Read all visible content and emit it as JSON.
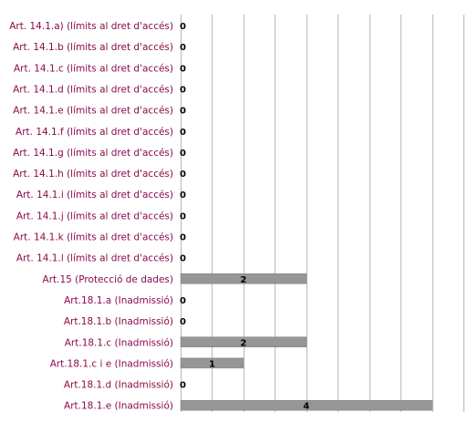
{
  "chart_data": {
    "type": "bar",
    "orientation": "horizontal",
    "categories": [
      "Art. 14.1.a) (límits al dret d'accés)",
      "Art. 14.1.b (límits al dret d'accés)",
      "Art. 14.1.c (límits al dret d'accés)",
      "Art. 14.1.d (límits al dret d'accés)",
      "Art. 14.1.e (límits al dret d'accés)",
      "Art. 14.1.f (límits al dret d'accés)",
      "Art. 14.1.g (límits al dret d'accés)",
      "Art. 14.1.h (límits al dret d'accés)",
      "Art. 14.1.i (límits al dret d'accés)",
      "Art. 14.1.j (límits al dret d'accés)",
      "Art. 14.1.k (límits al dret d'accés)",
      "Art. 14.1.l (límits al dret d'accés)",
      "Art.15 (Protecció de dades)",
      "Art.18.1.a (Inadmissió)",
      "Art.18.1.b (Inadmissió)",
      "Art.18.1.c (Inadmissió)",
      "Art.18.1.c i e (Inadmissió)",
      "Art.18.1.d (Inadmissió)",
      "Art.18.1.e (Inadmissió)"
    ],
    "values": [
      0,
      0,
      0,
      0,
      0,
      0,
      0,
      0,
      0,
      0,
      0,
      0,
      2,
      0,
      0,
      2,
      1,
      0,
      4
    ],
    "data_labels": [
      "0",
      "0",
      "0",
      "0",
      "0",
      "0",
      "0",
      "0",
      "0",
      "0",
      "0",
      "0",
      "2",
      "0",
      "0",
      "2",
      "1",
      "0",
      "4"
    ],
    "xlim": [
      0,
      4.5
    ],
    "grid_step": 0.5,
    "grid": true,
    "legend": "none",
    "colors": {
      "bar": "#969696",
      "bar_edge": "#7a7a7a",
      "grid": "#b8b8b8",
      "label": "#8B0A4A",
      "value_label": "#000000"
    }
  }
}
